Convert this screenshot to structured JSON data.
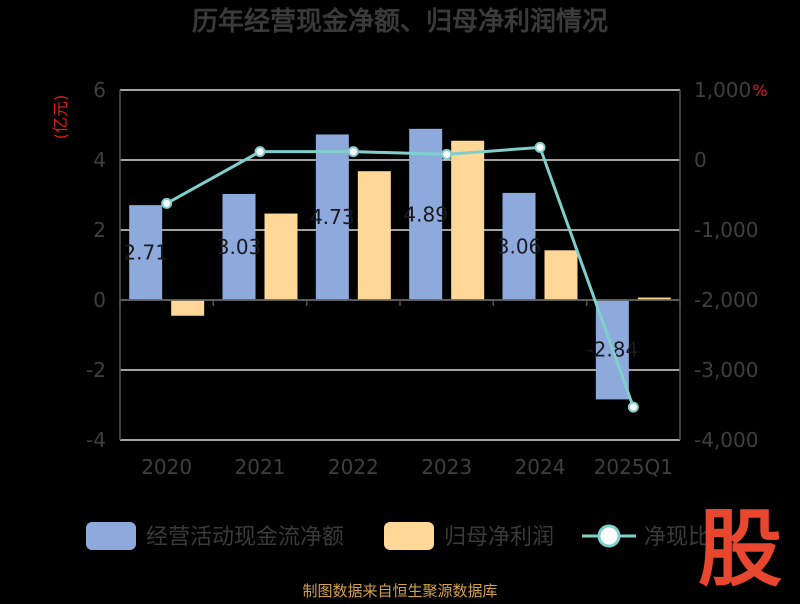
{
  "chart_data": {
    "type": "bar",
    "title": "历年经营现金净额、归母净利润情况",
    "categories": [
      "2020",
      "2021",
      "2022",
      "2023",
      "2024",
      "2025Q1"
    ],
    "left_axis": {
      "unit": "(亿元)",
      "ylim": [
        -4,
        6
      ],
      "ticks": [
        "6",
        "4",
        "2",
        "0",
        "-2",
        "-4"
      ]
    },
    "right_axis": {
      "unit": "%",
      "ylim": [
        -4000,
        1000
      ],
      "ticks": [
        "1,000",
        "0",
        "-1,000",
        "-2,000",
        "-3,000",
        "-4,000"
      ]
    },
    "series": [
      {
        "name": "经营活动现金流净额",
        "type": "bar",
        "axis": "left",
        "color": "#8eaadc",
        "values": [
          2.71,
          3.03,
          4.73,
          4.89,
          3.06,
          -2.84
        ],
        "labels": [
          "2.71",
          "3.03",
          "4.73",
          "4.89",
          "3.06",
          "-2.84"
        ]
      },
      {
        "name": "归母净利润",
        "type": "bar",
        "axis": "left",
        "color": "#ffd898",
        "values": [
          -0.45,
          2.47,
          3.68,
          4.55,
          1.42,
          0.07
        ]
      },
      {
        "name": "净现比",
        "type": "line",
        "axis": "right",
        "color": "#7fcfcb",
        "values": [
          -620,
          120,
          120,
          80,
          180,
          -3530
        ]
      }
    ],
    "grid": true,
    "legend_position": "bottom"
  },
  "legend": [
    {
      "label": "经营活动现金流净额",
      "icon": "bar-swatch",
      "color": "#8eaadc"
    },
    {
      "label": "归母净利润",
      "icon": "bar-swatch",
      "color": "#ffd898"
    },
    {
      "label": "净现比",
      "icon": "line-circle-marker",
      "color": "#7fcfcb"
    }
  ],
  "footer": {
    "source": "制图数据来自恒生聚源数据库",
    "color": "#d4a24a"
  },
  "logo": {
    "text": "股",
    "color": "#e8462e"
  },
  "colors": {
    "unit_text": "#e21b1b",
    "axis": "#555555",
    "grid": "#d9d9d9"
  }
}
